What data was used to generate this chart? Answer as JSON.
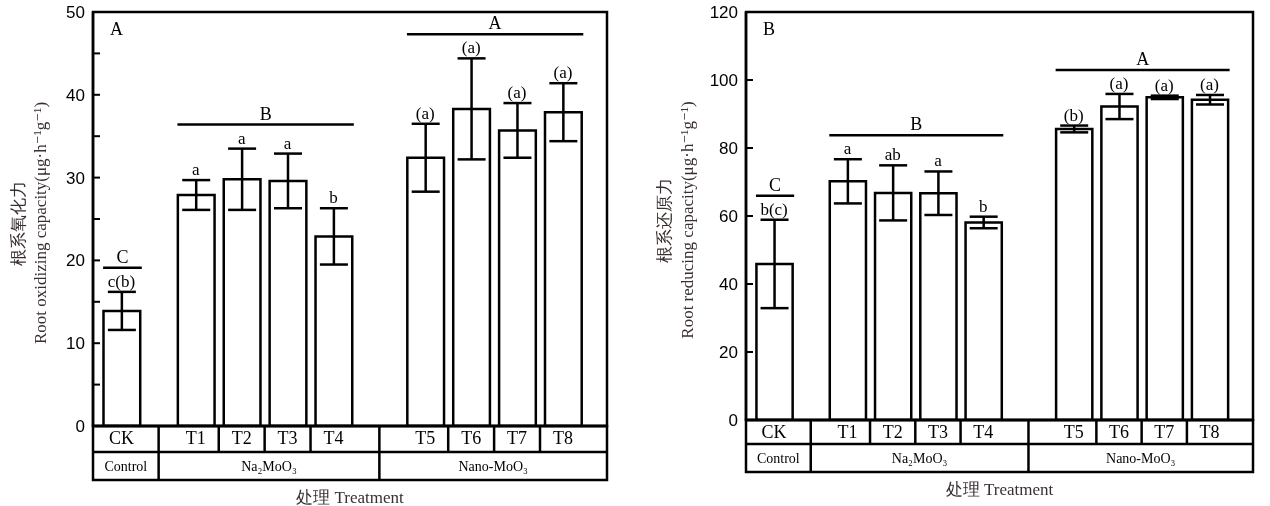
{
  "chart_data": [
    {
      "type": "bar",
      "title": "A",
      "xlabel": "处理 Treatment",
      "ylabel": "根系氧化力\nRoot oxidizing capacity(μg·h⁻¹g⁻¹)",
      "categories": [
        "CK",
        "T1",
        "T2",
        "T3",
        "T4",
        "T5",
        "T6",
        "T7",
        "T8"
      ],
      "values": [
        13.9,
        27.9,
        29.8,
        29.6,
        22.9,
        32.4,
        38.3,
        35.7,
        37.9
      ],
      "errors": [
        2.3,
        1.8,
        3.7,
        3.3,
        3.4,
        4.1,
        6.1,
        3.3,
        3.5
      ],
      "value_labels": [
        "c(b)",
        "a",
        "a",
        "a",
        "b",
        "(a)",
        "(a)",
        "(a)",
        "(a)"
      ],
      "color": "#ffffff",
      "ylim": [
        0,
        50
      ],
      "yticks": [
        0,
        {
          "value": 5,
          "label": null
        },
        10,
        {
          "value": 15,
          "label": null
        },
        20,
        {
          "value": 25,
          "label": null
        },
        30,
        {
          "value": 35,
          "label": null
        },
        40,
        {
          "value": 45,
          "label": null
        },
        50
      ],
      "annotations": [
        "Control",
        "Na₂MoO₃",
        "Nano-MoO₃",
        "C",
        "B",
        "A"
      ]
    },
    {
      "type": "bar",
      "title": "B",
      "xlabel": "处理 Treatment",
      "ylabel": "根系还原力\nRoot reducing capacity(μg·h⁻¹g⁻¹)",
      "categories": [
        "CK",
        "T1",
        "T2",
        "T3",
        "T4",
        "T5",
        "T6",
        "T7",
        "T8"
      ],
      "values": [
        45.9,
        70.2,
        66.8,
        66.7,
        58.1,
        85.6,
        92.2,
        94.9,
        94.2
      ],
      "errors": [
        13,
        6.5,
        8.1,
        6.4,
        1.7,
        1.0,
        3.7,
        0.5,
        1.4
      ],
      "value_labels": [
        "b(c)",
        "a",
        "ab",
        "a",
        "b",
        "(b)",
        "(a)",
        "(a)",
        "(a)"
      ],
      "color": "#ffffff",
      "ylim": [
        0,
        120
      ],
      "yticks": [
        0,
        20,
        40,
        60,
        80,
        100,
        120
      ],
      "annotations": [
        "Control",
        "Na₂MoO₃",
        "Nano-MoO₃",
        "C",
        "B",
        "A"
      ]
    }
  ]
}
